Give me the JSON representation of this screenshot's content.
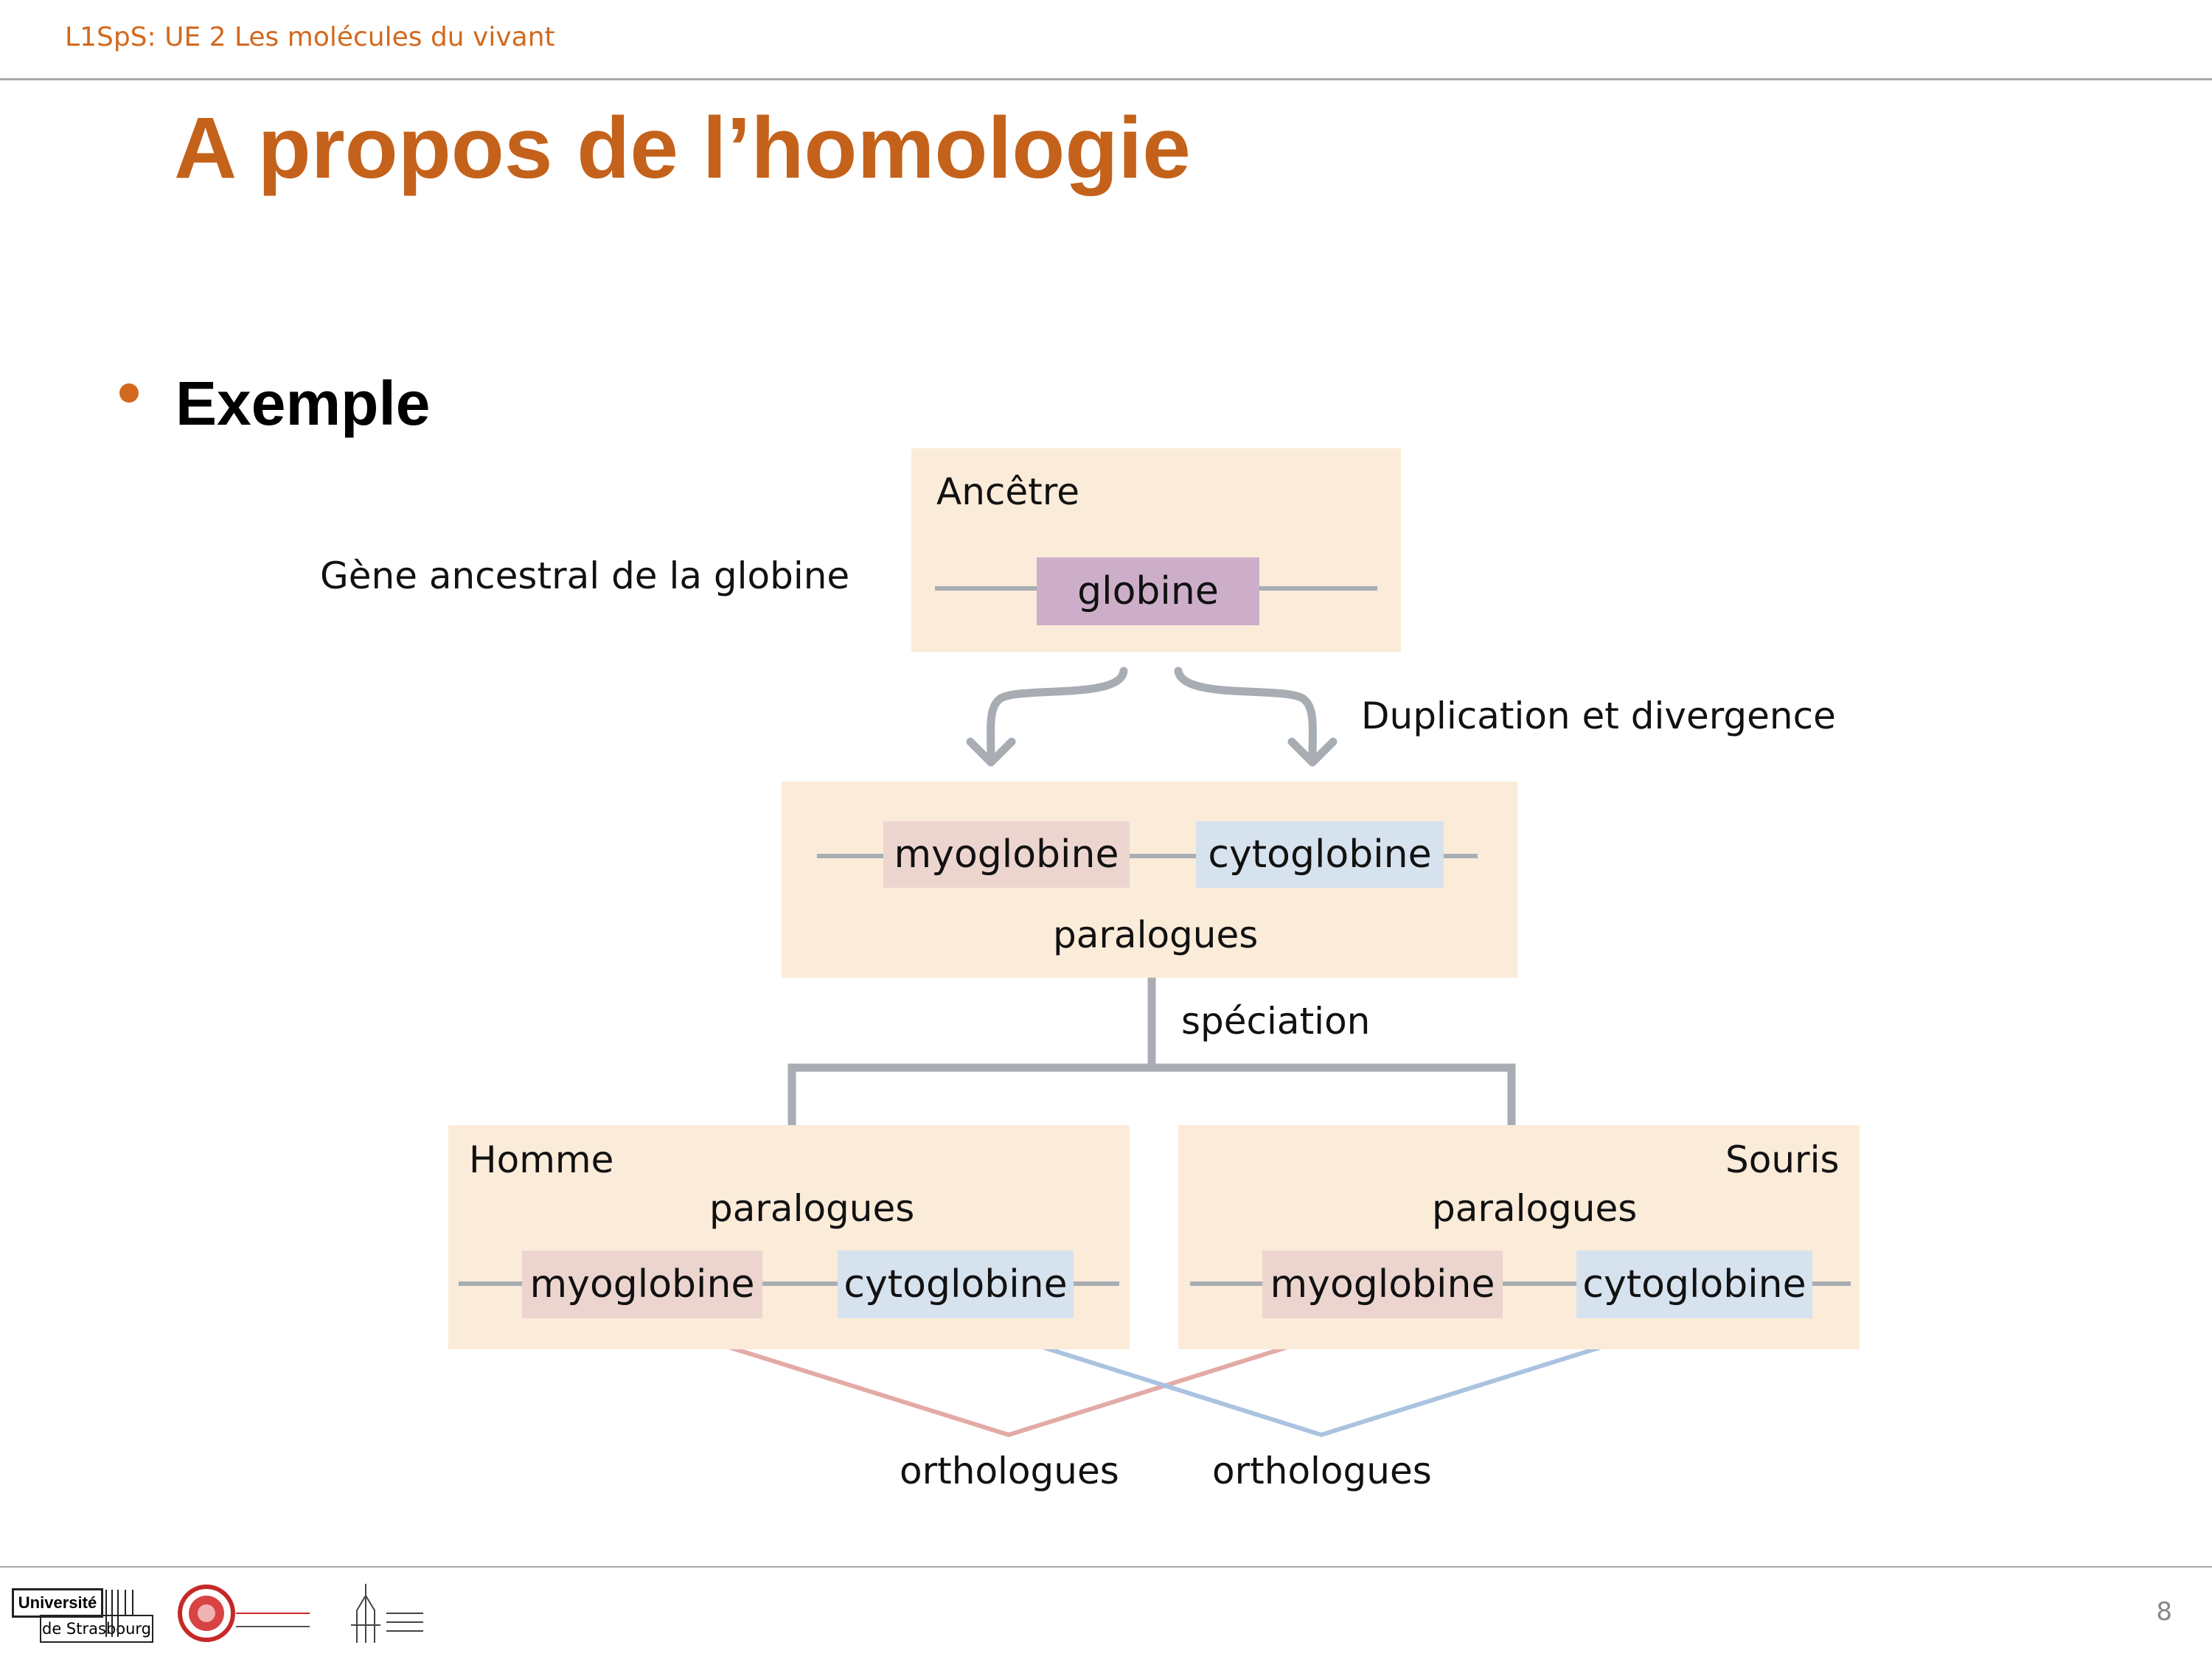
{
  "header": {
    "course": "L1SpS: UE 2 Les molécules du vivant"
  },
  "slide": {
    "title": "A propos de l’homologie",
    "bullet": "Exemple",
    "page_number": "8"
  },
  "diagram": {
    "ancestor": {
      "title": "Ancêtre",
      "gene": "globine",
      "side_label": "Gène ancestral de la globine"
    },
    "duplication_label": "Duplication et divergence",
    "paralog_box": {
      "gene1": "myoglobine",
      "gene2": "cytoglobine",
      "label": "paralogues"
    },
    "speciation_label": "spéciation",
    "human": {
      "title": "Homme",
      "label": "paralogues",
      "gene1": "myoglobine",
      "gene2": "cytoglobine"
    },
    "mouse": {
      "title": "Souris",
      "label": "paralogues",
      "gene1": "myoglobine",
      "gene2": "cytoglobine"
    },
    "ortholog_labels": [
      "orthologues",
      "orthologues"
    ]
  },
  "footer": {
    "logos": [
      {
        "name": "universite-strasbourg-logo",
        "text1": "Université",
        "text2": "de Strasbourg"
      },
      {
        "name": "faculte-medecine-logo"
      },
      {
        "name": "hopitaux-universitaires-logo"
      }
    ]
  },
  "colors": {
    "accent": "#c4621b",
    "box": "#fbebd9",
    "gene_ancestor": "#cdaec9",
    "gene_myoglobine": "#ecd5cf",
    "gene_cytoglobine": "#d6e2ee",
    "line_myoglobine": "#e3aaa6",
    "line_cytoglobine": "#a9c3e0"
  }
}
